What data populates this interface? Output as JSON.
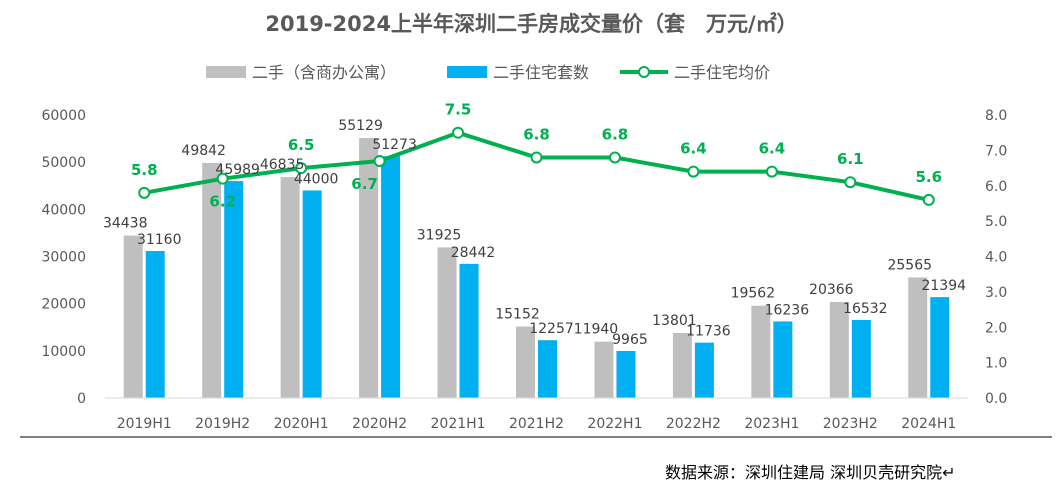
{
  "chart_data": {
    "type": "bar",
    "title": "2019-2024上半年深圳二手房成交量价（套　万元/㎡）",
    "categories": [
      "2019H1",
      "2019H2",
      "2020H1",
      "2020H2",
      "2021H1",
      "2021H2",
      "2022H1",
      "2022H2",
      "2023H1",
      "2023H2",
      "2024H1"
    ],
    "series": [
      {
        "name": "二手（含商办公寓）",
        "type": "bar",
        "axis": "left",
        "color": "#BFBFBF",
        "values": [
          34438,
          49842,
          46835,
          55129,
          31925,
          15152,
          11940,
          13801,
          19562,
          20366,
          25565
        ]
      },
      {
        "name": "二手住宅套数",
        "type": "bar",
        "axis": "left",
        "color": "#00B0F0",
        "values": [
          31160,
          45989,
          44000,
          51273,
          28442,
          12257,
          9965,
          11736,
          16236,
          16532,
          21394
        ]
      },
      {
        "name": "二手住宅均价",
        "type": "line",
        "axis": "right",
        "color": "#00B050",
        "values": [
          5.8,
          6.2,
          6.5,
          6.7,
          7.5,
          6.8,
          6.8,
          6.4,
          6.4,
          6.1,
          5.6
        ]
      }
    ],
    "y_left": {
      "min": 0,
      "max": 60000,
      "ticks": [
        0,
        10000,
        20000,
        30000,
        40000,
        50000,
        60000
      ]
    },
    "y_right": {
      "min": 0,
      "max": 8,
      "ticks": [
        "0.0",
        "1.0",
        "2.0",
        "3.0",
        "4.0",
        "5.0",
        "6.0",
        "7.0",
        "8.0"
      ]
    },
    "legend_position": "top",
    "grid": false
  },
  "source_text": "数据来源：深圳住建局  深圳贝壳研究院↵"
}
